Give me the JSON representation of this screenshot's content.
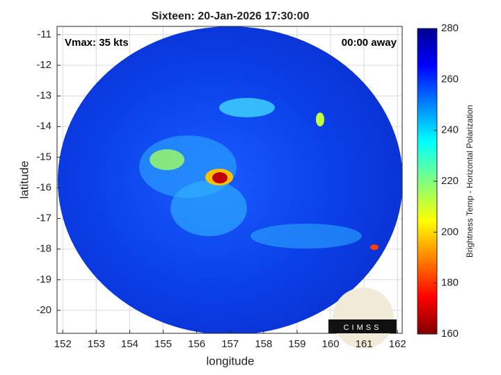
{
  "chart_data": {
    "type": "heatmap",
    "title": "Sixteen: 20-Jan-2026 17:30:00",
    "x_label": "longitude",
    "y_label": "latitude",
    "xlim": [
      151.83,
      162.14
    ],
    "xticks": [
      152,
      153,
      154,
      155,
      156,
      157,
      158,
      159,
      160,
      161,
      162
    ],
    "ylim": [
      -20.75,
      -10.73
    ],
    "yticks": [
      -11,
      -12,
      -13,
      -14,
      -15,
      -16,
      -17,
      -18,
      -19,
      -20
    ],
    "grid": true,
    "colorbar": {
      "label": "Brightness Temp - Horizontal Polarization",
      "clim": [
        160,
        280
      ],
      "ticks": [
        160,
        180,
        200,
        220,
        240,
        260,
        280
      ]
    },
    "annotations": [
      "Vmax: 35 kts",
      "00:00 away"
    ],
    "logo": "CIMSS"
  }
}
